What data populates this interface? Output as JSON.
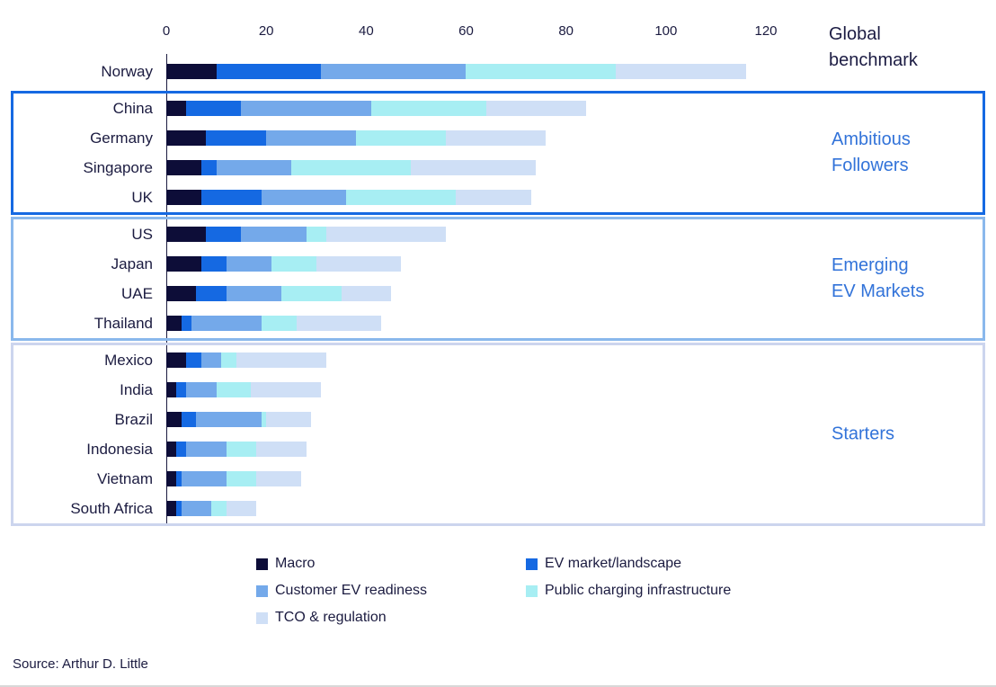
{
  "chart_data": {
    "type": "bar",
    "orientation": "horizontal",
    "stacked": true,
    "x_axis": {
      "ticks": [
        0,
        20,
        40,
        60,
        80,
        100,
        120
      ],
      "min": 0,
      "max": 120,
      "position": "top"
    },
    "series": [
      {
        "name": "Macro",
        "color": "#0d0d38"
      },
      {
        "name": "EV market/landscape",
        "color": "#1569e2"
      },
      {
        "name": "Customer EV readiness",
        "color": "#74a9ea"
      },
      {
        "name": "Public charging infrastructure",
        "color": "#a7eef3"
      },
      {
        "name": "TCO & regulation",
        "color": "#cfdff6"
      }
    ],
    "legend_order": [
      0,
      2,
      4,
      1,
      3
    ],
    "groups": [
      {
        "label": "Global benchmark",
        "style": "benchmark",
        "border_color": "transparent",
        "rows": [
          {
            "country": "Norway",
            "values": [
              10,
              21,
              29,
              30,
              26
            ]
          }
        ]
      },
      {
        "label": "Ambitious Followers",
        "style": "strong",
        "border_color": "#1569e2",
        "rows": [
          {
            "country": "China",
            "values": [
              4,
              11,
              26,
              23,
              20
            ]
          },
          {
            "country": "Germany",
            "values": [
              8,
              12,
              18,
              18,
              20
            ]
          },
          {
            "country": "Singapore",
            "values": [
              7,
              3,
              15,
              24,
              25
            ]
          },
          {
            "country": "UK",
            "values": [
              7,
              12,
              17,
              22,
              15
            ]
          }
        ]
      },
      {
        "label": "Emerging EV Markets",
        "style": "medium",
        "border_color": "#8ab8ec",
        "rows": [
          {
            "country": "US",
            "values": [
              8,
              7,
              13,
              4,
              24
            ]
          },
          {
            "country": "Japan",
            "values": [
              7,
              5,
              9,
              9,
              17
            ]
          },
          {
            "country": "UAE",
            "values": [
              6,
              6,
              11,
              12,
              10
            ]
          },
          {
            "country": "Thailand",
            "values": [
              3,
              2,
              14,
              7,
              17
            ]
          }
        ]
      },
      {
        "label": "Starters",
        "style": "light",
        "border_color": "#ccd5ee",
        "rows": [
          {
            "country": "Mexico",
            "values": [
              4,
              3,
              4,
              3,
              18
            ]
          },
          {
            "country": "India",
            "values": [
              2,
              2,
              6,
              7,
              14
            ]
          },
          {
            "country": "Brazil",
            "values": [
              3,
              3,
              13,
              1,
              9
            ]
          },
          {
            "country": "Indonesia",
            "values": [
              2,
              2,
              8,
              6,
              10
            ]
          },
          {
            "country": "Vietnam",
            "values": [
              2,
              1,
              9,
              6,
              9
            ]
          },
          {
            "country": "South Africa",
            "values": [
              2,
              1,
              6,
              3,
              6
            ]
          }
        ]
      }
    ],
    "source": "Source: Arthur D. Little"
  },
  "colors": {
    "text_navy": "#1b1b40",
    "group_label_blue": "#3273d9",
    "axis_line": "#1b1b40"
  }
}
